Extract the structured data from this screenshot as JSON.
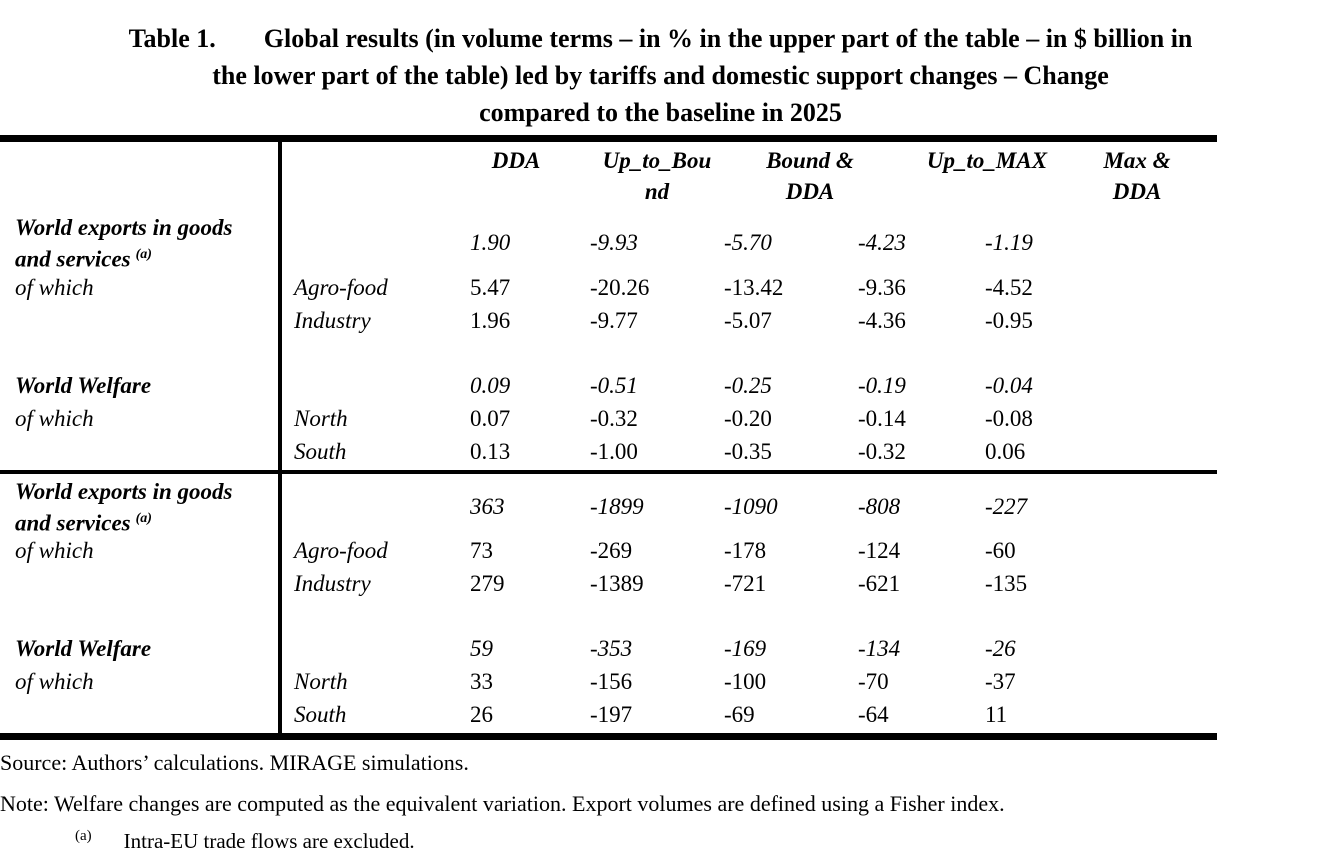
{
  "title": {
    "prefix": "Table 1.",
    "line1": "Global results (in volume terms – in % in the upper part of the table – in $ billion in",
    "line2": "the lower part of the table) led by tariffs and domestic support changes  – Change",
    "line3": "compared to the baseline in 2025"
  },
  "table": {
    "headers": [
      "DDA",
      "Up_to_Bou\nnd",
      "Bound &\nDDA",
      "Up_to_MAX",
      "Max &\nDDA"
    ],
    "sections": [
      {
        "exports": {
          "label_line1": "World exports in goods",
          "label_line2": "and services",
          "footnote_ref": "(a)",
          "of_which_label": "of which",
          "values": [
            "1.90",
            "-9.93",
            "-5.70",
            "-4.23",
            "-1.19"
          ],
          "rows": [
            {
              "label": "Agro-food",
              "values": [
                "5.47",
                "-20.26",
                "-13.42",
                "-9.36",
                "-4.52"
              ]
            },
            {
              "label": "Industry",
              "values": [
                "1.96",
                "-9.77",
                "-5.07",
                "-4.36",
                "-0.95"
              ]
            }
          ]
        },
        "welfare": {
          "label": "World Welfare",
          "of_which_label": "of which",
          "values": [
            "0.09",
            "-0.51",
            "-0.25",
            "-0.19",
            "-0.04"
          ],
          "rows": [
            {
              "label": "North",
              "values": [
                "0.07",
                "-0.32",
                "-0.20",
                "-0.14",
                "-0.08"
              ]
            },
            {
              "label": "South",
              "values": [
                "0.13",
                "-1.00",
                "-0.35",
                "-0.32",
                "0.06"
              ]
            }
          ]
        }
      },
      {
        "exports": {
          "label_line1": "World exports in goods",
          "label_line2": "and services",
          "footnote_ref": "(a)",
          "of_which_label": "of which",
          "values": [
            "363",
            "-1899",
            "-1090",
            "-808",
            "-227"
          ],
          "rows": [
            {
              "label": "Agro-food",
              "values": [
                "73",
                "-269",
                "-178",
                "-124",
                "-60"
              ]
            },
            {
              "label": "Industry",
              "values": [
                "279",
                "-1389",
                "-721",
                "-621",
                "-135"
              ]
            }
          ]
        },
        "welfare": {
          "label": "World Welfare",
          "of_which_label": "of which",
          "values": [
            "59",
            "-353",
            "-169",
            "-134",
            "-26"
          ],
          "rows": [
            {
              "label": "North",
              "values": [
                "33",
                "-156",
                "-100",
                "-70",
                "-37"
              ]
            },
            {
              "label": "South",
              "values": [
                "26",
                "-197",
                "-69",
                "-64",
                "11"
              ]
            }
          ]
        }
      }
    ]
  },
  "notes": {
    "source": "Source: Authors’ calculations. MIRAGE simulations.",
    "note": "Note: Welfare changes are computed as the equivalent variation. Export volumes are defined using a Fisher index.",
    "footnote_marker": "(a)",
    "footnote_text": "Intra-EU trade flows are excluded."
  }
}
